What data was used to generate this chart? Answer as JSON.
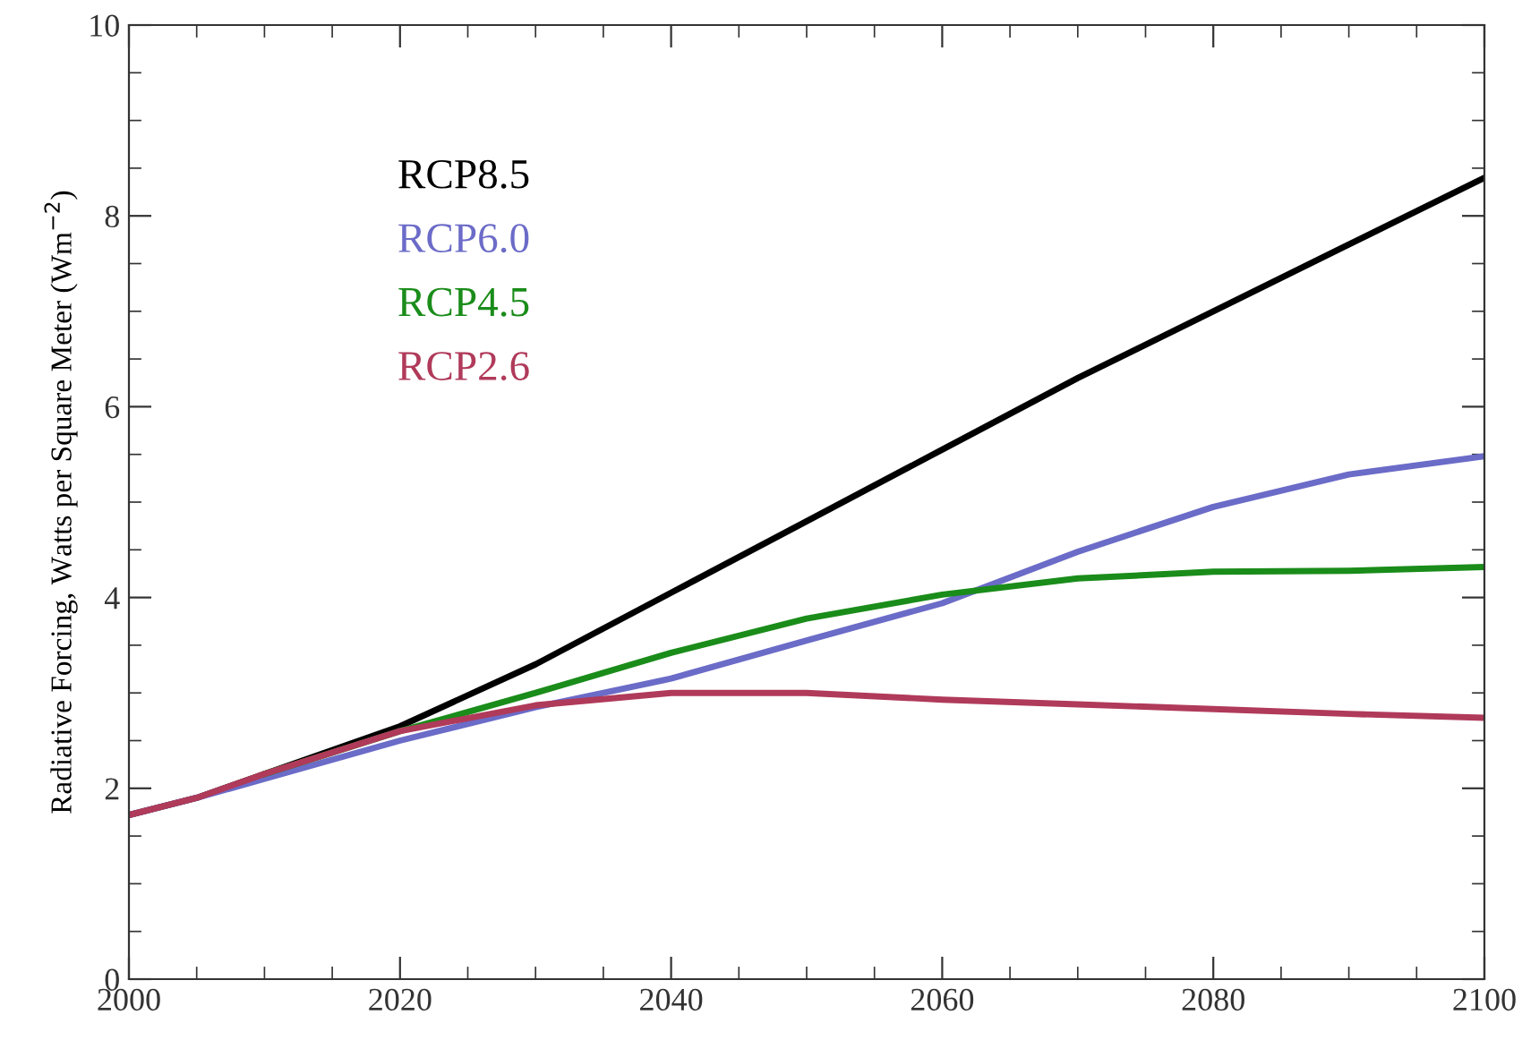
{
  "chart_data": {
    "type": "line",
    "ylabel": "Radiative Forcing, Watts per Square Meter (Wm$^{−2}$)",
    "x": [
      2000,
      2005,
      2010,
      2020,
      2030,
      2040,
      2050,
      2060,
      2070,
      2080,
      2090,
      2100
    ],
    "series": [
      {
        "name": "RCP8.5",
        "color": "#000000",
        "values": [
          1.72,
          1.9,
          2.15,
          2.65,
          3.3,
          4.05,
          4.8,
          5.55,
          6.3,
          7.0,
          7.7,
          8.4
        ]
      },
      {
        "name": "RCP6.0",
        "color": "#6b6bc8",
        "values": [
          1.72,
          1.9,
          2.1,
          2.5,
          2.85,
          3.15,
          3.55,
          3.94,
          4.48,
          4.95,
          5.29,
          5.48
        ]
      },
      {
        "name": "RCP4.5",
        "color": "#1a8c1a",
        "values": [
          null,
          null,
          2.15,
          2.6,
          3.0,
          3.42,
          3.78,
          4.03,
          4.2,
          4.27,
          4.28,
          4.32
        ]
      },
      {
        "name": "RCP2.6",
        "color": "#b03a5a",
        "values": [
          1.72,
          1.9,
          2.15,
          2.6,
          2.87,
          3.0,
          3.0,
          2.93,
          2.88,
          2.83,
          2.78,
          2.74
        ]
      }
    ],
    "xlim": [
      2000,
      2100
    ],
    "xticks": [
      2000,
      2020,
      2040,
      2060,
      2080,
      2100
    ],
    "ylim": [
      0,
      10
    ],
    "yticks": [
      0,
      2,
      4,
      6,
      8,
      10
    ],
    "legend": "top left",
    "grid": false
  }
}
